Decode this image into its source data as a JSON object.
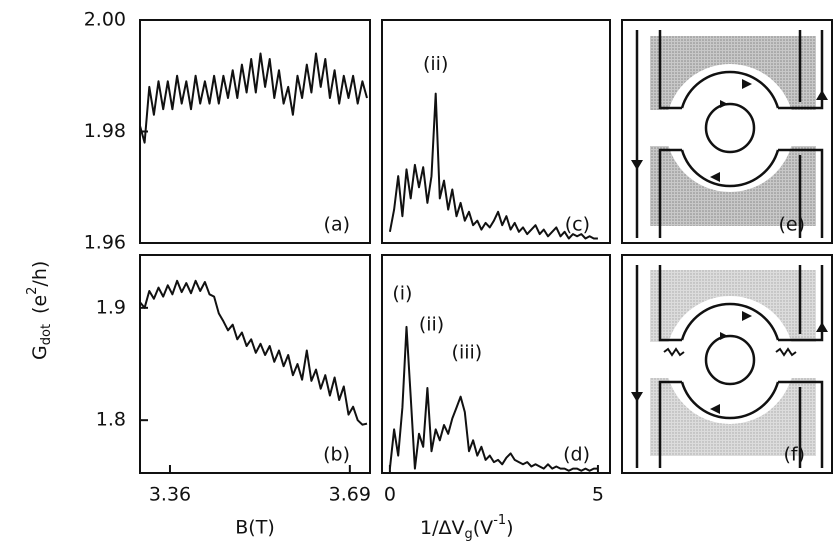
{
  "chart_data": [
    {
      "type": "line",
      "panel_label": "(a)",
      "ylabel_parts": [
        "G",
        "dot",
        "(e",
        "2",
        "/h)"
      ],
      "xlim": [
        3.305,
        3.727
      ],
      "ylim": [
        1.96,
        2.0
      ],
      "yticks": [
        {
          "value": 2.0,
          "label": "2.00"
        },
        {
          "value": 1.98,
          "label": "1.98"
        },
        {
          "value": 1.96,
          "label": "1.96"
        }
      ],
      "x": [
        3.305,
        3.3135,
        3.322,
        3.3305,
        3.339,
        3.3475,
        3.356,
        3.3645,
        3.373,
        3.3815,
        3.39,
        3.3985,
        3.407,
        3.4155,
        3.424,
        3.4325,
        3.441,
        3.4495,
        3.458,
        3.4665,
        3.475,
        3.4835,
        3.492,
        3.5005,
        3.509,
        3.5175,
        3.526,
        3.5345,
        3.543,
        3.5515,
        3.56,
        3.5685,
        3.577,
        3.5855,
        3.594,
        3.6025,
        3.611,
        3.6195,
        3.628,
        3.6365,
        3.645,
        3.6535,
        3.662,
        3.6705,
        3.679,
        3.6875,
        3.696,
        3.7045,
        3.713,
        3.7215
      ],
      "values": [
        1.981,
        1.978,
        1.988,
        1.983,
        1.989,
        1.984,
        1.989,
        1.984,
        1.99,
        1.985,
        1.989,
        1.984,
        1.99,
        1.985,
        1.989,
        1.985,
        1.99,
        1.985,
        1.99,
        1.986,
        1.991,
        1.986,
        1.992,
        1.987,
        1.993,
        1.987,
        1.994,
        1.988,
        1.993,
        1.986,
        1.991,
        1.985,
        1.988,
        1.983,
        1.99,
        1.986,
        1.992,
        1.987,
        1.994,
        1.988,
        1.993,
        1.986,
        1.991,
        1.985,
        1.99,
        1.986,
        1.99,
        1.985,
        1.989,
        1.986
      ]
    },
    {
      "type": "line",
      "panel_label": "(b)",
      "xlabel": "B(T)",
      "xlim": [
        3.305,
        3.727
      ],
      "ylim": [
        1.753,
        1.947
      ],
      "xticks": [
        3.36,
        3.69
      ],
      "yticks": [
        1.9,
        1.8
      ],
      "x": [
        3.305,
        3.3135,
        3.322,
        3.3305,
        3.339,
        3.3475,
        3.356,
        3.3645,
        3.373,
        3.3815,
        3.39,
        3.3985,
        3.407,
        3.4155,
        3.424,
        3.4325,
        3.441,
        3.4495,
        3.458,
        3.4665,
        3.475,
        3.4835,
        3.492,
        3.5005,
        3.509,
        3.5175,
        3.526,
        3.5345,
        3.543,
        3.5515,
        3.56,
        3.5685,
        3.577,
        3.5855,
        3.594,
        3.6025,
        3.611,
        3.6195,
        3.628,
        3.6365,
        3.645,
        3.6535,
        3.662,
        3.6705,
        3.679,
        3.6875,
        3.696,
        3.7045,
        3.713,
        3.7215
      ],
      "values": [
        1.905,
        1.9,
        1.915,
        1.908,
        1.918,
        1.91,
        1.92,
        1.912,
        1.924,
        1.914,
        1.922,
        1.913,
        1.924,
        1.915,
        1.923,
        1.912,
        1.91,
        1.895,
        1.888,
        1.88,
        1.885,
        1.872,
        1.878,
        1.866,
        1.872,
        1.86,
        1.868,
        1.858,
        1.866,
        1.852,
        1.862,
        1.848,
        1.858,
        1.84,
        1.85,
        1.836,
        1.862,
        1.835,
        1.845,
        1.828,
        1.84,
        1.822,
        1.838,
        1.818,
        1.83,
        1.805,
        1.812,
        1.8,
        1.796,
        1.797
      ]
    },
    {
      "type": "line",
      "panel_label": "(c)",
      "annotations": [
        "(ii)"
      ],
      "xlim": [
        -0.19,
        5.29
      ],
      "ylim": [
        0,
        1
      ],
      "x": [
        0,
        0.1,
        0.2,
        0.3,
        0.4,
        0.5,
        0.6,
        0.7,
        0.8,
        0.9,
        1,
        1.1,
        1.2,
        1.3,
        1.4,
        1.5,
        1.6,
        1.7,
        1.8,
        1.9,
        2,
        2.1,
        2.2,
        2.3,
        2.4,
        2.5,
        2.6,
        2.7,
        2.8,
        2.9,
        3,
        3.1,
        3.2,
        3.3,
        3.4,
        3.5,
        3.6,
        3.7,
        3.8,
        3.9,
        4,
        4.1,
        4.2,
        4.3,
        4.4,
        4.5,
        4.6,
        4.7,
        4.8,
        4.9,
        5
      ],
      "values": [
        0.05,
        0.15,
        0.3,
        0.12,
        0.33,
        0.2,
        0.35,
        0.25,
        0.34,
        0.18,
        0.3,
        0.67,
        0.2,
        0.28,
        0.15,
        0.24,
        0.12,
        0.18,
        0.1,
        0.14,
        0.08,
        0.1,
        0.06,
        0.09,
        0.07,
        0.1,
        0.14,
        0.08,
        0.12,
        0.06,
        0.09,
        0.05,
        0.07,
        0.04,
        0.06,
        0.08,
        0.04,
        0.06,
        0.03,
        0.05,
        0.07,
        0.03,
        0.05,
        0.02,
        0.04,
        0.03,
        0.04,
        0.02,
        0.03,
        0.02,
        0.02
      ]
    },
    {
      "type": "line",
      "panel_label": "(d)",
      "annotations": [
        "(i)",
        "(ii)",
        "(iii)"
      ],
      "xlabel_parts": [
        "1/ΔV",
        "g",
        "(V",
        "-1",
        ")"
      ],
      "xlim": [
        -0.19,
        5.29
      ],
      "ylim": [
        0,
        1
      ],
      "xticks": [
        0,
        5
      ],
      "x": [
        0,
        0.1,
        0.2,
        0.3,
        0.4,
        0.5,
        0.6,
        0.7,
        0.8,
        0.9,
        1,
        1.1,
        1.2,
        1.3,
        1.4,
        1.5,
        1.6,
        1.7,
        1.8,
        1.9,
        2,
        2.1,
        2.2,
        2.3,
        2.4,
        2.5,
        2.6,
        2.7,
        2.8,
        2.9,
        3,
        3.1,
        3.2,
        3.3,
        3.4,
        3.5,
        3.6,
        3.7,
        3.8,
        3.9,
        4,
        4.1,
        4.2,
        4.3,
        4.4,
        4.5,
        4.6,
        4.7,
        4.8,
        4.9,
        5
      ],
      "values": [
        0.02,
        0.2,
        0.08,
        0.3,
        0.67,
        0.35,
        0.02,
        0.18,
        0.12,
        0.39,
        0.1,
        0.2,
        0.15,
        0.22,
        0.18,
        0.25,
        0.3,
        0.35,
        0.28,
        0.1,
        0.15,
        0.08,
        0.12,
        0.06,
        0.08,
        0.05,
        0.06,
        0.04,
        0.07,
        0.09,
        0.06,
        0.05,
        0.04,
        0.05,
        0.03,
        0.04,
        0.03,
        0.02,
        0.04,
        0.02,
        0.03,
        0.02,
        0.02,
        0.01,
        0.02,
        0.02,
        0.01,
        0.02,
        0.01,
        0.02,
        0.02
      ]
    }
  ],
  "diagrams": [
    {
      "label": "(e)"
    },
    {
      "label": "(f)"
    }
  ]
}
